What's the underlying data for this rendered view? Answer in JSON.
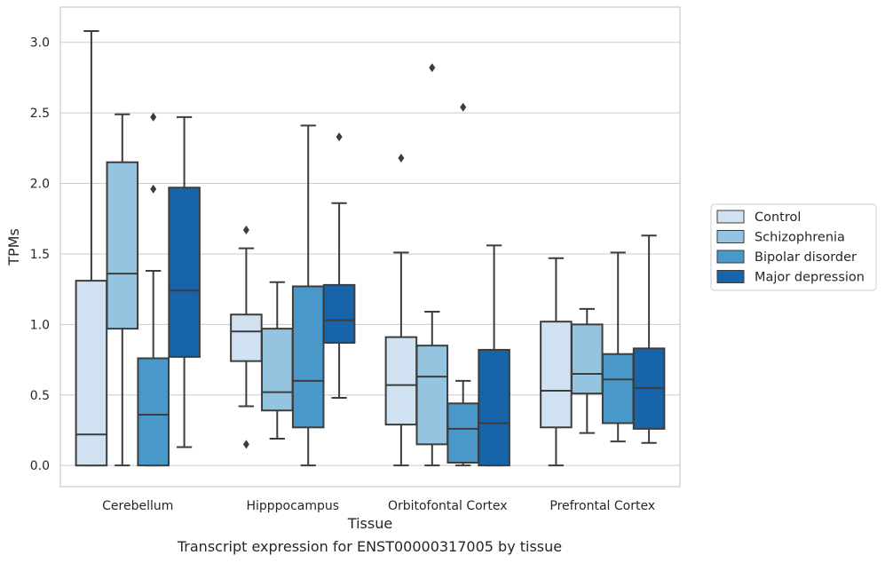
{
  "chart_data": {
    "type": "box",
    "caption": "Transcript expression for ENST00000317005 by tissue",
    "xlabel": "Tissue",
    "ylabel": "TPMs",
    "ylim": [
      -0.15,
      3.25
    ],
    "yticks": [
      0.0,
      0.5,
      1.0,
      1.5,
      2.0,
      2.5,
      3.0
    ],
    "ytick_labels": [
      "0.0",
      "0.5",
      "1.0",
      "1.5",
      "2.0",
      "2.5",
      "3.0"
    ],
    "grid": "horizontal",
    "legend_position": "right",
    "categories": [
      "Cerebellum",
      "Hipppocampus",
      "Orbitofontal Cortex",
      "Prefrontal Cortex"
    ],
    "series": [
      {
        "name": "Control",
        "color": "#d0e1f2",
        "boxes": [
          {
            "whisker_low": 0.0,
            "q1": 0.0,
            "median": 0.22,
            "q3": 1.31,
            "whisker_high": 3.08,
            "outliers": []
          },
          {
            "whisker_low": 0.42,
            "q1": 0.74,
            "median": 0.95,
            "q3": 1.07,
            "whisker_high": 1.54,
            "outliers": [
              1.67,
              0.15
            ]
          },
          {
            "whisker_low": 0.0,
            "q1": 0.29,
            "median": 0.57,
            "q3": 0.91,
            "whisker_high": 1.51,
            "outliers": [
              2.18
            ]
          },
          {
            "whisker_low": 0.0,
            "q1": 0.27,
            "median": 0.53,
            "q3": 1.02,
            "whisker_high": 1.47,
            "outliers": []
          }
        ]
      },
      {
        "name": "Schizophrenia",
        "color": "#94c4df",
        "boxes": [
          {
            "whisker_low": 0.0,
            "q1": 0.97,
            "median": 1.36,
            "q3": 2.15,
            "whisker_high": 2.49,
            "outliers": []
          },
          {
            "whisker_low": 0.19,
            "q1": 0.39,
            "median": 0.52,
            "q3": 0.97,
            "whisker_high": 1.3,
            "outliers": []
          },
          {
            "whisker_low": 0.0,
            "q1": 0.15,
            "median": 0.63,
            "q3": 0.85,
            "whisker_high": 1.09,
            "outliers": [
              2.82
            ]
          },
          {
            "whisker_low": 0.23,
            "q1": 0.51,
            "median": 0.65,
            "q3": 1.0,
            "whisker_high": 1.11,
            "outliers": []
          }
        ]
      },
      {
        "name": "Bipolar disorder",
        "color": "#4a98c9",
        "boxes": [
          {
            "whisker_low": 0.0,
            "q1": 0.0,
            "median": 0.36,
            "q3": 0.76,
            "whisker_high": 1.38,
            "outliers": [
              2.47,
              1.96
            ]
          },
          {
            "whisker_low": 0.0,
            "q1": 0.27,
            "median": 0.6,
            "q3": 1.27,
            "whisker_high": 2.41,
            "outliers": []
          },
          {
            "whisker_low": 0.0,
            "q1": 0.02,
            "median": 0.26,
            "q3": 0.44,
            "whisker_high": 0.6,
            "outliers": [
              2.54
            ]
          },
          {
            "whisker_low": 0.17,
            "q1": 0.3,
            "median": 0.61,
            "q3": 0.79,
            "whisker_high": 1.51,
            "outliers": []
          }
        ]
      },
      {
        "name": "Major depression",
        "color": "#1764ab",
        "boxes": [
          {
            "whisker_low": 0.13,
            "q1": 0.77,
            "median": 1.24,
            "q3": 1.97,
            "whisker_high": 2.47,
            "outliers": []
          },
          {
            "whisker_low": 0.48,
            "q1": 0.87,
            "median": 1.03,
            "q3": 1.28,
            "whisker_high": 1.86,
            "outliers": [
              2.33
            ]
          },
          {
            "whisker_low": 0.0,
            "q1": 0.0,
            "median": 0.3,
            "q3": 0.82,
            "whisker_high": 1.56,
            "outliers": []
          },
          {
            "whisker_low": 0.16,
            "q1": 0.26,
            "median": 0.55,
            "q3": 0.83,
            "whisker_high": 1.63,
            "outliers": []
          }
        ]
      }
    ]
  }
}
